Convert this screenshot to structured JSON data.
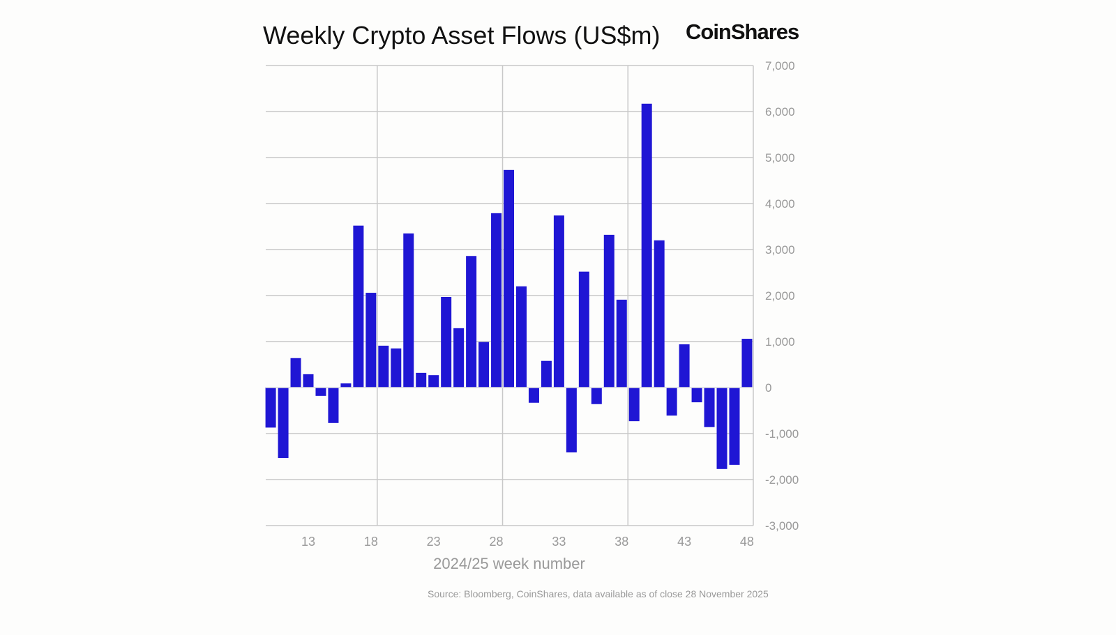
{
  "title": "Weekly Crypto Asset Flows (US$m)",
  "logo": "CoinShares",
  "source": "Source: Bloomberg, CoinShares, data available as of close 28 November 2025",
  "colors": {
    "bar": "#1f16d4",
    "grid": "#c8c8c8",
    "text": "#999999"
  },
  "chart_data": {
    "type": "bar",
    "title": "Weekly Crypto Asset Flows (US$m)",
    "xlabel": "2024/25 week number",
    "ylabel": "",
    "ylim": [
      -3000,
      7000
    ],
    "yticks": [
      7000,
      6000,
      5000,
      4000,
      3000,
      2000,
      1000,
      0,
      -1000,
      -2000,
      -3000
    ],
    "ytick_labels": [
      "7,000",
      "6,000",
      "5,000",
      "4,000",
      "3,000",
      "2,000",
      "1,000",
      "0",
      "-1,000",
      "-2,000",
      "-3,000"
    ],
    "xtick_labels": [
      "13",
      "18",
      "23",
      "28",
      "33",
      "38",
      "43",
      "48"
    ],
    "categories": [
      10,
      11,
      12,
      13,
      14,
      15,
      16,
      17,
      18,
      19,
      20,
      21,
      22,
      23,
      24,
      25,
      26,
      27,
      28,
      29,
      30,
      31,
      32,
      33,
      34,
      35,
      36,
      37,
      38,
      39,
      40,
      41,
      42,
      43,
      44,
      45,
      46,
      47,
      48
    ],
    "values": [
      -870,
      -1530,
      640,
      290,
      -180,
      -770,
      90,
      3520,
      2060,
      910,
      850,
      3350,
      320,
      270,
      1970,
      1290,
      2860,
      990,
      3790,
      4730,
      2200,
      -330,
      580,
      3740,
      -1410,
      2520,
      -360,
      3320,
      1910,
      -730,
      6170,
      3200,
      -610,
      940,
      -320,
      -860,
      -1770,
      -1680,
      1060
    ],
    "grid": true,
    "legend": "none"
  }
}
